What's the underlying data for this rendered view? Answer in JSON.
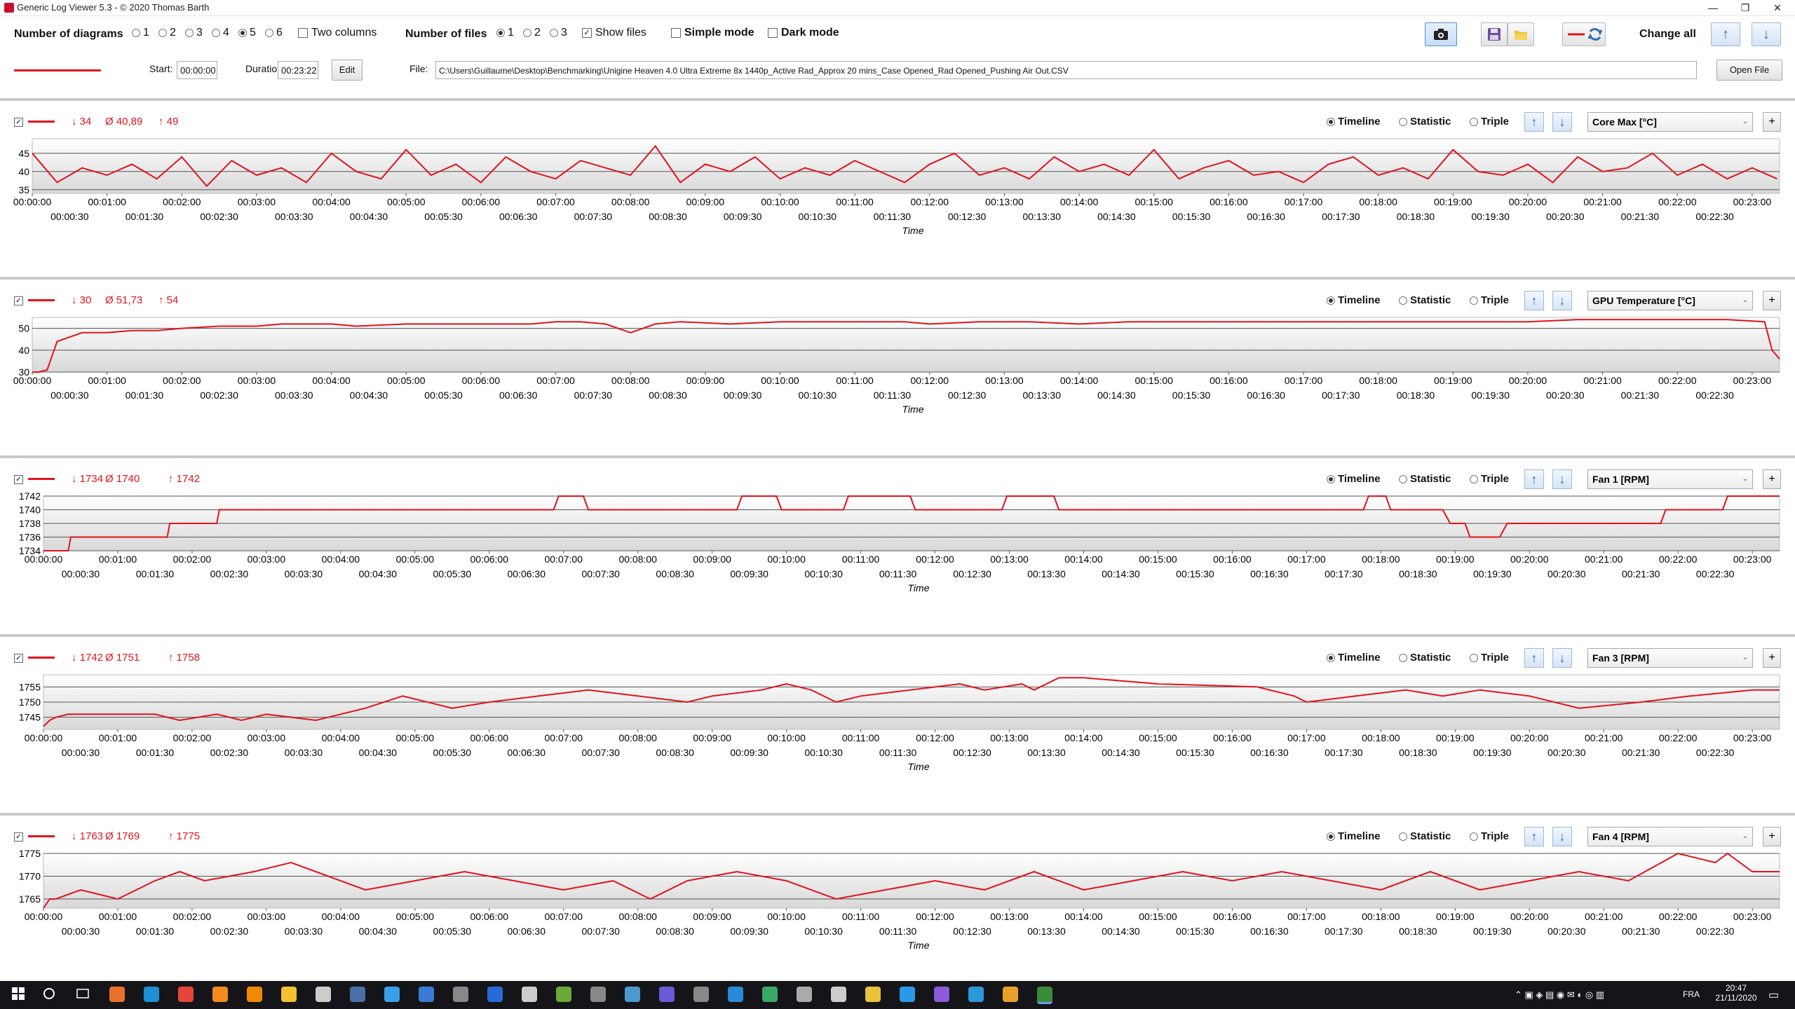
{
  "window": {
    "title": "Generic Log Viewer 5.3 - © 2020 Thomas Barth",
    "minimize_glyph": "—",
    "maximize_glyph": "❐",
    "close_glyph": "✕"
  },
  "toolbar": {
    "num_diagrams_label": "Number of diagrams",
    "diagram_options": [
      "1",
      "2",
      "3",
      "4",
      "5",
      "6"
    ],
    "diagram_selected": "5",
    "two_columns_label": "Two columns",
    "num_files_label": "Number of files",
    "file_options": [
      "1",
      "2",
      "3"
    ],
    "file_selected": "1",
    "show_files_label": "Show files",
    "simple_mode_label": "Simple mode",
    "dark_mode_label": "Dark mode",
    "change_all_label": "Change all",
    "start_label": "Start:",
    "start_value": "00:00:00",
    "duration_label": "Duration:",
    "duration_value": "00:23:22",
    "edit_label": "Edit",
    "file_label": "File:",
    "file_path": "C:\\Users\\Guillaume\\Desktop\\Benchmarking\\Unigine Heaven 4.0 Ultra Extreme 8x 1440p_Active Rad_Approx 20 mins_Case Opened_Rad Opened_Pushing Air Out.CSV",
    "open_file_label": "Open File",
    "series_color": "#e0141e"
  },
  "common": {
    "timeline_label": "Timeline",
    "statistic_label": "Statistic",
    "triple_label": "Triple",
    "xlabel": "Time",
    "up_arrow": "↑",
    "down_arrow": "↓",
    "plus": "+",
    "x_ticks_top": [
      "00:00:00",
      "00:01:00",
      "00:02:00",
      "00:03:00",
      "00:04:00",
      "00:05:00",
      "00:06:00",
      "00:07:00",
      "00:08:00",
      "00:09:00",
      "00:10:00",
      "00:11:00",
      "00:12:00",
      "00:13:00",
      "00:14:00",
      "00:15:00",
      "00:16:00",
      "00:17:00",
      "00:18:00",
      "00:19:00",
      "00:20:00",
      "00:21:00",
      "00:22:00",
      "00:23:00"
    ],
    "x_ticks_bottom": [
      "00:00:30",
      "00:01:30",
      "00:02:30",
      "00:03:30",
      "00:04:30",
      "00:05:30",
      "00:06:30",
      "00:07:30",
      "00:08:30",
      "00:09:30",
      "00:10:30",
      "00:11:30",
      "00:12:30",
      "00:13:30",
      "00:14:30",
      "00:15:30",
      "00:16:30",
      "00:17:30",
      "00:18:30",
      "00:19:30",
      "00:20:30",
      "00:21:30",
      "00:22:30"
    ]
  },
  "panels": [
    {
      "min": "↓ 34",
      "avg": "Ø 40,89",
      "max": "↑ 49",
      "sensor": "Core Max [°C]"
    },
    {
      "min": "↓ 30",
      "avg": "Ø 51,73",
      "max": "↑ 54",
      "sensor": "GPU Temperature [°C]"
    },
    {
      "min": "↓ 1734",
      "avg": "Ø 1740",
      "max": "↑ 1742",
      "sensor": "Fan 1 [RPM]"
    },
    {
      "min": "↓ 1742",
      "avg": "Ø 1751",
      "max": "↑ 1758",
      "sensor": "Fan 3 [RPM]"
    },
    {
      "min": "↓ 1763",
      "avg": "Ø 1769",
      "max": "↑ 1775",
      "sensor": "Fan 4 [RPM]"
    }
  ],
  "chart_data": [
    {
      "type": "line",
      "title": "Core Max [°C]",
      "xlabel": "Time",
      "ylabel": "",
      "x_range_seconds": [
        0,
        1402
      ],
      "ylim": [
        34,
        49
      ],
      "y_ticks": [
        35,
        40,
        45
      ],
      "grid": true,
      "series": [
        {
          "name": "Core Max [°C]",
          "color": "#e0141e",
          "x": [
            0,
            20,
            40,
            60,
            80,
            100,
            120,
            140,
            160,
            180,
            200,
            220,
            240,
            260,
            280,
            300,
            320,
            340,
            360,
            380,
            400,
            420,
            440,
            460,
            480,
            500,
            520,
            540,
            560,
            580,
            600,
            620,
            640,
            660,
            680,
            700,
            720,
            740,
            760,
            780,
            800,
            820,
            840,
            860,
            880,
            900,
            920,
            940,
            960,
            980,
            1000,
            1020,
            1040,
            1060,
            1080,
            1100,
            1120,
            1140,
            1160,
            1180,
            1200,
            1220,
            1240,
            1260,
            1280,
            1300,
            1320,
            1340,
            1360,
            1380,
            1400
          ],
          "y": [
            45,
            37,
            41,
            39,
            42,
            38,
            44,
            36,
            43,
            39,
            41,
            37,
            45,
            40,
            38,
            46,
            39,
            42,
            37,
            44,
            40,
            38,
            43,
            41,
            39,
            47,
            37,
            42,
            40,
            44,
            38,
            41,
            39,
            43,
            40,
            37,
            42,
            45,
            39,
            41,
            38,
            44,
            40,
            42,
            39,
            46,
            38,
            41,
            43,
            39,
            40,
            37,
            42,
            44,
            39,
            41,
            38,
            46,
            40,
            39,
            42,
            37,
            44,
            40,
            41,
            45,
            39,
            42,
            38,
            41,
            38
          ]
        }
      ]
    },
    {
      "type": "line",
      "title": "GPU Temperature [°C]",
      "xlabel": "Time",
      "x_range_seconds": [
        0,
        1402
      ],
      "ylim": [
        30,
        55
      ],
      "y_ticks": [
        30,
        40,
        50
      ],
      "grid": true,
      "series": [
        {
          "name": "GPU Temperature [°C]",
          "color": "#e0141e",
          "x": [
            0,
            5,
            12,
            20,
            40,
            60,
            80,
            100,
            120,
            150,
            180,
            200,
            240,
            260,
            300,
            360,
            400,
            420,
            440,
            460,
            480,
            500,
            520,
            560,
            600,
            640,
            700,
            720,
            760,
            800,
            840,
            880,
            920,
            960,
            1000,
            1040,
            1080,
            1120,
            1160,
            1200,
            1240,
            1280,
            1320,
            1360,
            1390,
            1396,
            1402
          ],
          "y": [
            30,
            30,
            31,
            44,
            48,
            48,
            49,
            49,
            50,
            51,
            51,
            52,
            52,
            51,
            52,
            52,
            52,
            53,
            53,
            52,
            48,
            52,
            53,
            52,
            53,
            53,
            53,
            52,
            53,
            53,
            52,
            53,
            53,
            53,
            53,
            53,
            53,
            53,
            53,
            53,
            54,
            54,
            54,
            54,
            53,
            40,
            36
          ]
        }
      ]
    },
    {
      "type": "line",
      "title": "Fan 1 [RPM]",
      "xlabel": "Time",
      "x_range_seconds": [
        0,
        1402
      ],
      "ylim": [
        1734,
        1742
      ],
      "y_ticks": [
        1734,
        1736,
        1738,
        1740,
        1742
      ],
      "grid": true,
      "series": [
        {
          "name": "Fan 1 [RPM]",
          "color": "#e0141e",
          "x": [
            0,
            20,
            22,
            100,
            102,
            140,
            142,
            412,
            416,
            436,
            440,
            560,
            564,
            592,
            596,
            646,
            650,
            700,
            704,
            774,
            778,
            816,
            820,
            1066,
            1070,
            1084,
            1088,
            1130,
            1136,
            1148,
            1152,
            1176,
            1182,
            1306,
            1310,
            1356,
            1360,
            1402
          ],
          "y": [
            1734,
            1734,
            1736,
            1736,
            1738,
            1738,
            1740,
            1740,
            1742,
            1742,
            1740,
            1740,
            1742,
            1742,
            1740,
            1740,
            1742,
            1742,
            1740,
            1740,
            1742,
            1742,
            1740,
            1740,
            1742,
            1742,
            1740,
            1740,
            1738,
            1738,
            1736,
            1736,
            1738,
            1738,
            1740,
            1740,
            1742,
            1742
          ]
        }
      ]
    },
    {
      "type": "line",
      "title": "Fan 3 [RPM]",
      "xlabel": "Time",
      "x_range_seconds": [
        0,
        1402
      ],
      "ylim": [
        1741,
        1759
      ],
      "y_ticks": [
        1745,
        1750,
        1755
      ],
      "grid": true,
      "series": [
        {
          "name": "Fan 3 [RPM]",
          "color": "#e0141e",
          "x": [
            0,
            5,
            10,
            20,
            60,
            90,
            110,
            140,
            160,
            180,
            220,
            240,
            260,
            290,
            330,
            360,
            400,
            440,
            480,
            520,
            540,
            580,
            600,
            620,
            640,
            660,
            700,
            740,
            760,
            790,
            800,
            810,
            820,
            840,
            900,
            980,
            1010,
            1020,
            1060,
            1100,
            1130,
            1160,
            1200,
            1240,
            1290,
            1330,
            1380,
            1402
          ],
          "y": [
            1742,
            1744,
            1745,
            1746,
            1746,
            1746,
            1744,
            1746,
            1744,
            1746,
            1744,
            1746,
            1748,
            1752,
            1748,
            1750,
            1752,
            1754,
            1752,
            1750,
            1752,
            1754,
            1756,
            1754,
            1750,
            1752,
            1754,
            1756,
            1754,
            1756,
            1754,
            1756,
            1758,
            1758,
            1756,
            1755,
            1752,
            1750,
            1752,
            1754,
            1752,
            1754,
            1752,
            1748,
            1750,
            1752,
            1754,
            1754
          ]
        }
      ]
    },
    {
      "type": "line",
      "title": "Fan 4 [RPM]",
      "xlabel": "Time",
      "x_range_seconds": [
        0,
        1402
      ],
      "ylim": [
        1763,
        1775
      ],
      "y_ticks": [
        1765,
        1770,
        1775
      ],
      "grid": true,
      "series": [
        {
          "name": "Fan 4 [RPM]",
          "color": "#e0141e",
          "x": [
            0,
            5,
            10,
            30,
            60,
            90,
            110,
            130,
            170,
            200,
            220,
            260,
            300,
            340,
            380,
            420,
            460,
            490,
            520,
            560,
            600,
            640,
            680,
            720,
            760,
            800,
            840,
            880,
            920,
            960,
            1000,
            1040,
            1080,
            1120,
            1160,
            1200,
            1240,
            1280,
            1320,
            1350,
            1360,
            1380,
            1400,
            1402
          ],
          "y": [
            1763,
            1765,
            1765,
            1767,
            1765,
            1769,
            1771,
            1769,
            1771,
            1773,
            1771,
            1767,
            1769,
            1771,
            1769,
            1767,
            1769,
            1765,
            1769,
            1771,
            1769,
            1765,
            1767,
            1769,
            1767,
            1771,
            1767,
            1769,
            1771,
            1769,
            1771,
            1769,
            1767,
            1771,
            1767,
            1769,
            1771,
            1769,
            1775,
            1773,
            1775,
            1771,
            1771,
            1771
          ]
        }
      ]
    }
  ],
  "taskbar": {
    "lang": "FRA",
    "time": "20:47",
    "date": "21/11/2020",
    "icons": [
      "windows-start",
      "search",
      "task-view",
      "app-orange",
      "edge",
      "chrome",
      "firefox",
      "vlc",
      "file-explorer",
      "terminal-app",
      "steam",
      "app-blue-circle",
      "app-doc",
      "app-terminal",
      "app-chat",
      "app-disc",
      "app-green",
      "app-gear",
      "app-map",
      "app-purple",
      "app-tool",
      "app-blue2",
      "app-whatsapp",
      "app-scissors",
      "app-paint",
      "app-diamond",
      "vscode",
      "visual-studio",
      "app-globe",
      "app-arrow",
      "app-active"
    ]
  }
}
